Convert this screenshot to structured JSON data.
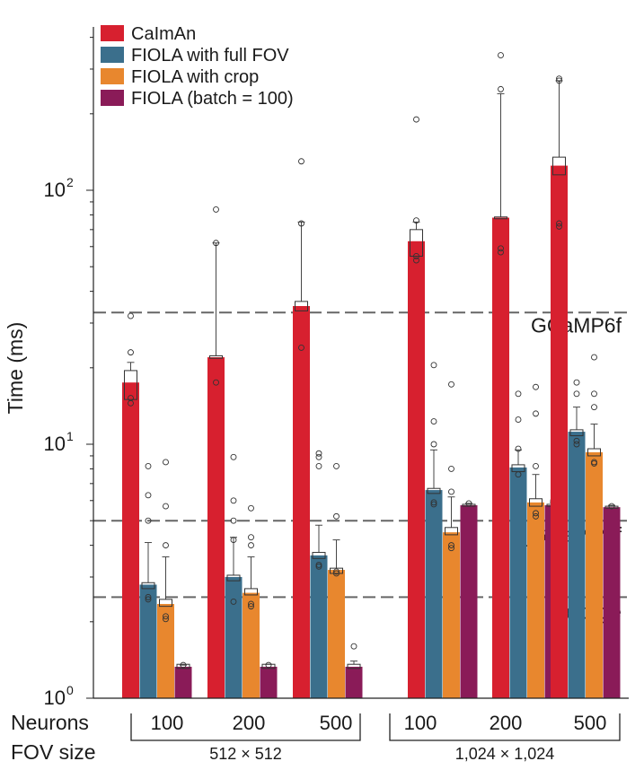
{
  "chart_data": {
    "type": "bar",
    "scale": "log",
    "ylabel": "Time (ms)",
    "ylim": [
      1,
      400
    ],
    "y_ticks": [
      {
        "value": 1,
        "label_base": "10",
        "label_exp": "0"
      },
      {
        "value": 10,
        "label_base": "10",
        "label_exp": "1"
      },
      {
        "value": 100,
        "label_base": "10",
        "label_exp": "2"
      }
    ],
    "row_labels": {
      "neurons": "Neurons",
      "fov": "FOV size"
    },
    "categories": [
      "100",
      "200",
      "500",
      "100",
      "200",
      "500"
    ],
    "fov_groups": [
      {
        "label": "512 × 512",
        "category_indices": [
          0,
          1,
          2
        ]
      },
      {
        "label": "1,024 × 1,024",
        "category_indices": [
          3,
          4,
          5
        ]
      }
    ],
    "series": [
      {
        "name": "CaImAn",
        "color": "#d7202f",
        "values": [
          17.5,
          22,
          35,
          63,
          78,
          125
        ],
        "box": [
          [
            15,
            19.5
          ],
          [
            21.8,
            22.3
          ],
          [
            33.5,
            36.5
          ],
          [
            55,
            70
          ],
          [
            77.5,
            78.5
          ],
          [
            115,
            135
          ]
        ],
        "whisker_high": [
          21,
          62,
          75,
          75,
          240,
          270
        ],
        "outliers": [
          [
            14.5,
            15.2,
            23,
            32
          ],
          [
            17.5,
            62,
            84
          ],
          [
            24,
            74,
            130
          ],
          [
            53,
            55,
            76,
            190
          ],
          [
            57,
            59,
            250,
            340
          ],
          [
            72,
            74,
            270,
            275
          ]
        ]
      },
      {
        "name": "FIOLA with full FOV",
        "color": "#3b6f8c",
        "values": [
          2.8,
          3.0,
          3.65,
          6.6,
          8.1,
          11.2
        ],
        "box": [
          [
            2.7,
            2.85
          ],
          [
            2.9,
            3.05
          ],
          [
            3.55,
            3.75
          ],
          [
            6.4,
            6.7
          ],
          [
            7.8,
            8.3
          ],
          [
            10.8,
            11.4
          ]
        ],
        "whisker_high": [
          4.1,
          4.3,
          4.8,
          9.5,
          9.5,
          14
        ],
        "outliers": [
          [
            2.45,
            2.5,
            5.0,
            6.3,
            8.2
          ],
          [
            2.4,
            4.2,
            5.0,
            6.0,
            8.9
          ],
          [
            3.3,
            3.35,
            8.2,
            8.9,
            9.2
          ],
          [
            5.8,
            5.9,
            10,
            12.3,
            20.5
          ],
          [
            7.6,
            9.6,
            12.5,
            15.8
          ],
          [
            10,
            10.3,
            15.8,
            17.5
          ]
        ]
      },
      {
        "name": "FIOLA with crop",
        "color": "#e8872e",
        "values": [
          2.35,
          2.6,
          3.2,
          4.5,
          5.9,
          9.3
        ],
        "box": [
          [
            2.3,
            2.45
          ],
          [
            2.55,
            2.7
          ],
          [
            3.1,
            3.25
          ],
          [
            4.4,
            4.7
          ],
          [
            5.7,
            6.1
          ],
          [
            9.0,
            9.6
          ]
        ],
        "whisker_high": [
          3.6,
          3.6,
          4.2,
          6.2,
          7.6,
          12
        ],
        "outliers": [
          [
            2.05,
            2.1,
            4.0,
            5.7,
            8.5
          ],
          [
            2.3,
            2.35,
            4.0,
            4.3,
            5.6
          ],
          [
            3.1,
            3.15,
            5.2,
            8.2
          ],
          [
            3.9,
            4.0,
            6.5,
            8.0,
            17.2
          ],
          [
            5.2,
            5.35,
            8.2,
            13.2,
            16.8
          ],
          [
            8.4,
            8.5,
            14,
            15.8,
            22
          ]
        ]
      },
      {
        "name": "FIOLA (batch = 100)",
        "color": "#8a1b58",
        "values": [
          1.33,
          1.33,
          1.33,
          5.75,
          5.75,
          5.65
        ],
        "box": [
          [
            1.31,
            1.36
          ],
          [
            1.31,
            1.36
          ],
          [
            1.31,
            1.36
          ],
          [
            5.7,
            5.8
          ],
          [
            5.7,
            5.8
          ],
          [
            5.6,
            5.7
          ]
        ],
        "whisker_high": [
          1.35,
          1.36,
          1.4,
          5.85,
          5.9,
          5.75
        ],
        "outliers": [
          [
            1.35
          ],
          [
            1.35
          ],
          [
            1.6
          ],
          [
            5.85
          ],
          [
            6.0
          ],
          [
            5.7
          ]
        ]
      }
    ],
    "reference_lines": [
      {
        "label": "GCaMP6f",
        "value": 33
      },
      {
        "label": "jGCaMP8f",
        "value": 5.0
      },
      {
        "label": "Voltage",
        "value": 2.5
      }
    ],
    "legend_position": "top-left"
  }
}
